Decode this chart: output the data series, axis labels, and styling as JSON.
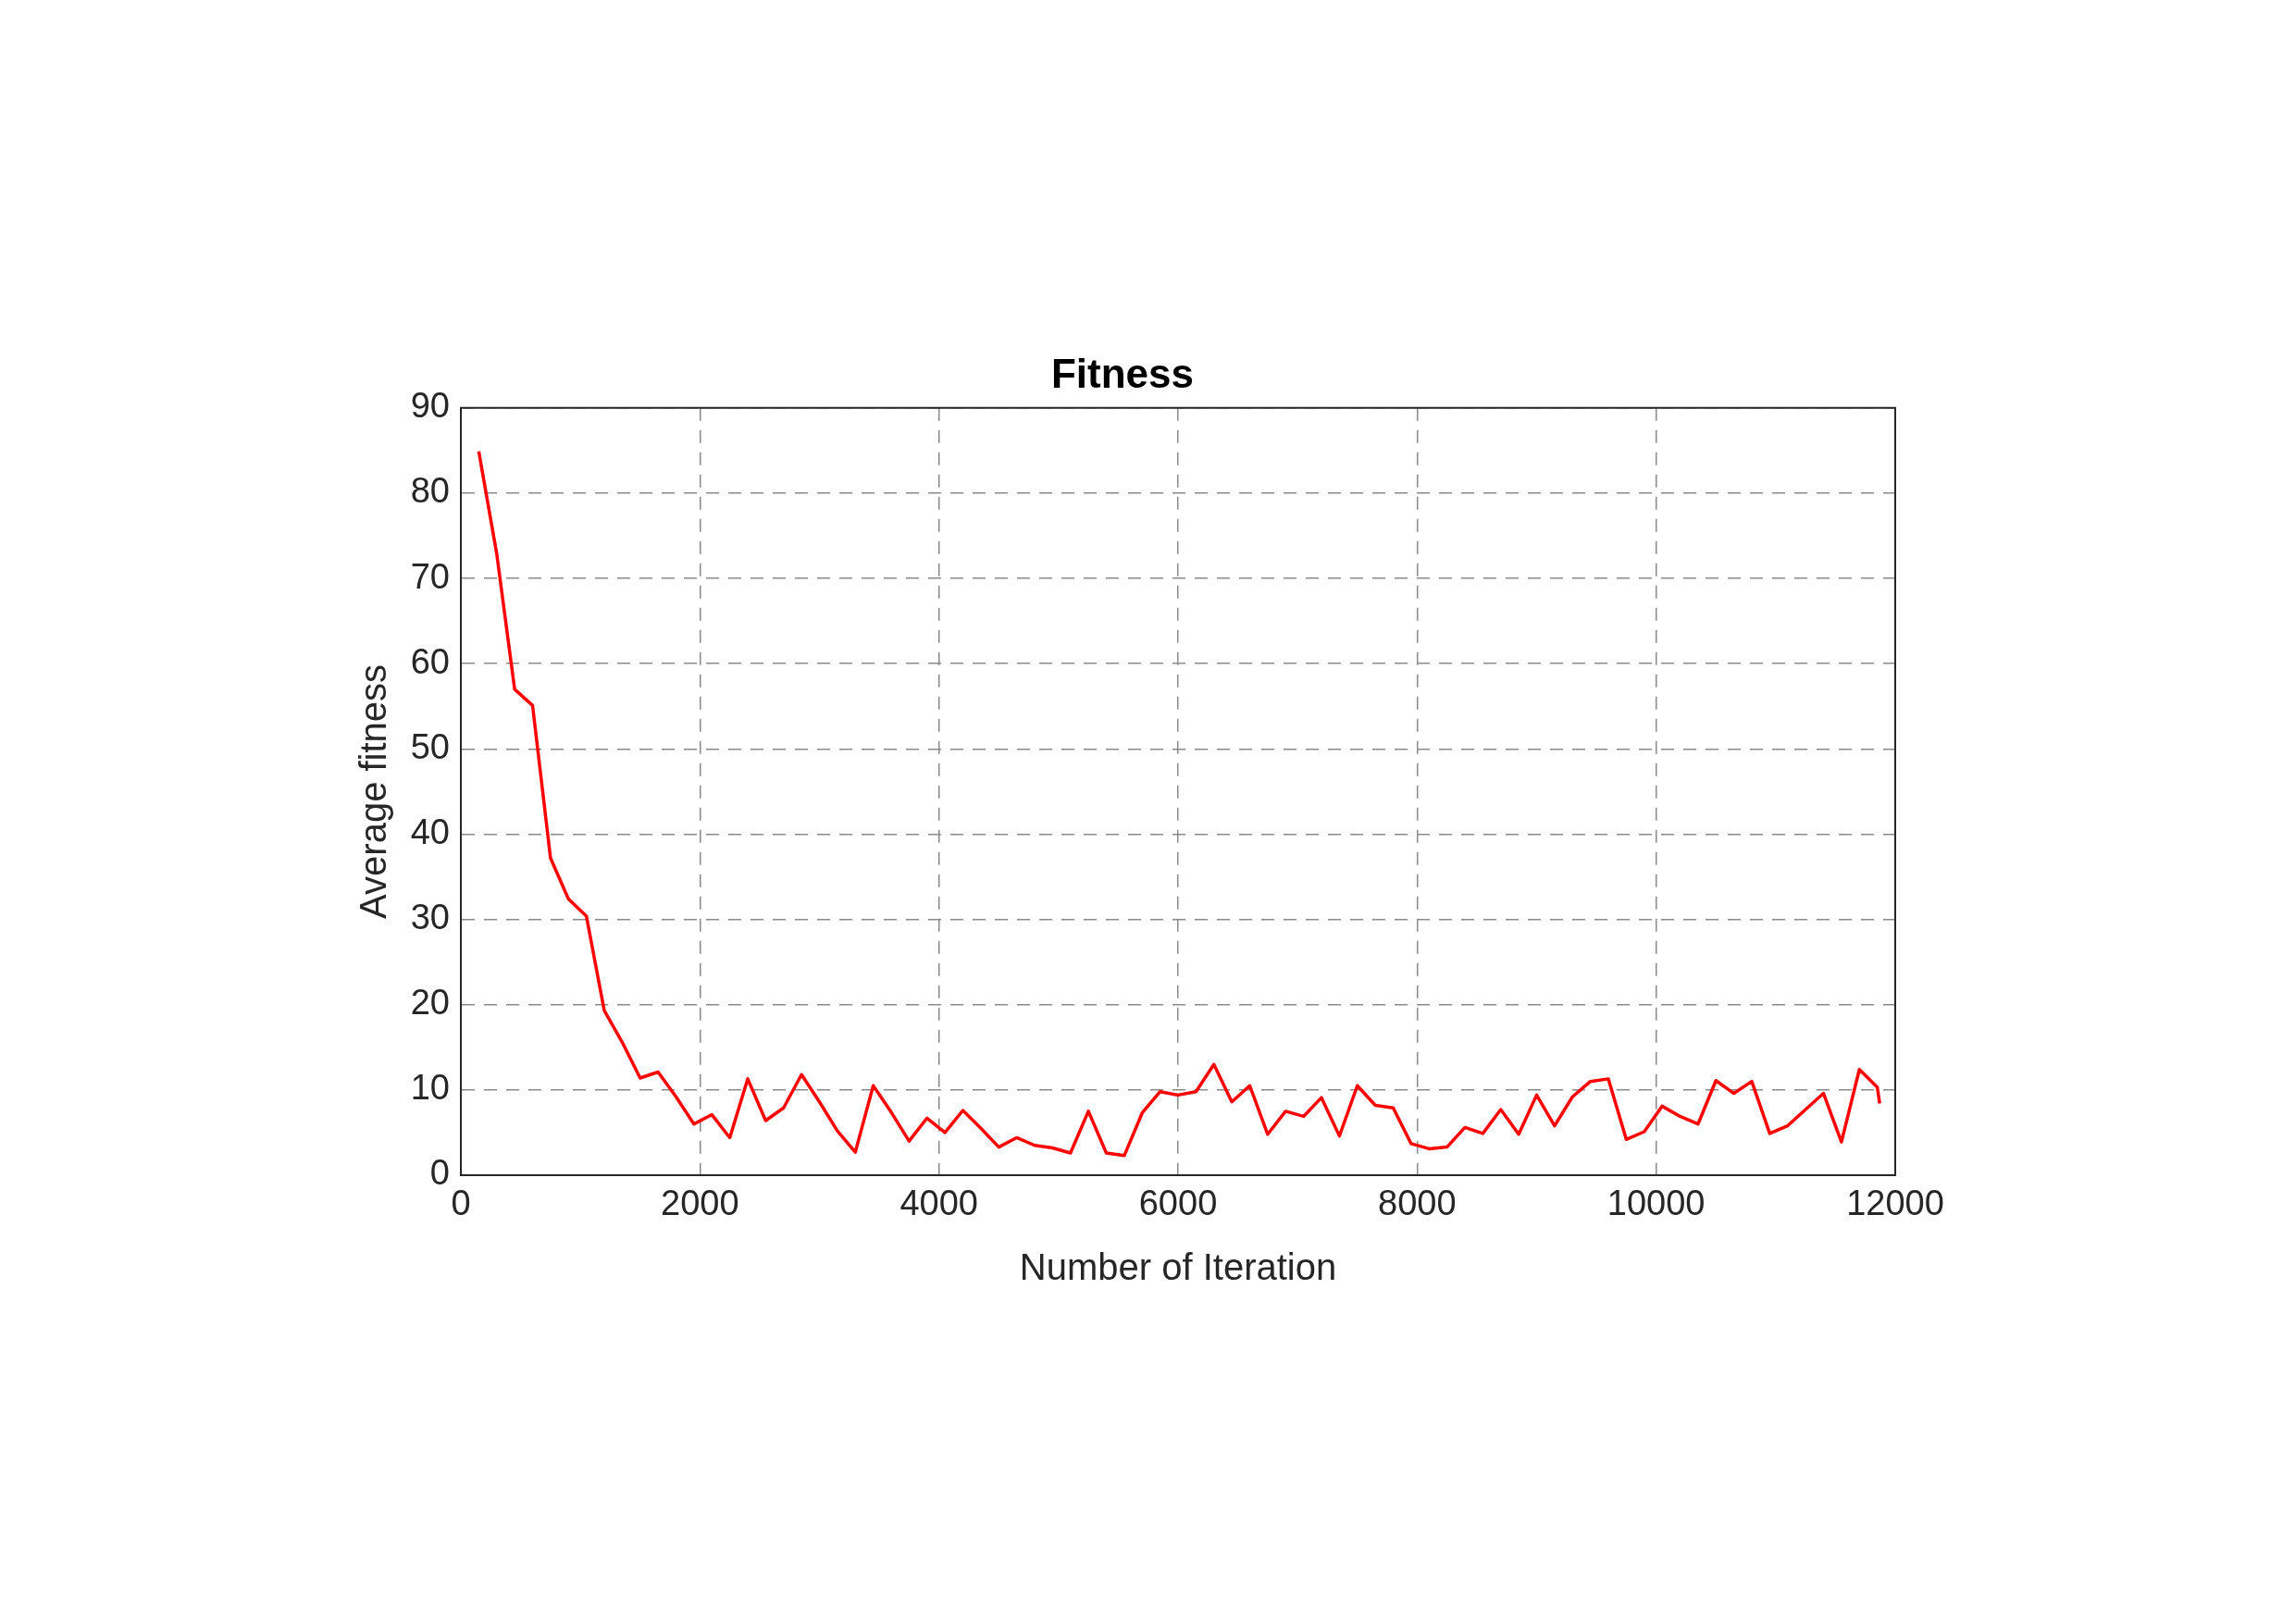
{
  "chart_data": {
    "type": "line",
    "title": "Fitness",
    "xlabel": "Number of Iteration",
    "ylabel": "Average fitness",
    "x": [
      150,
      300,
      450,
      600,
      750,
      900,
      1050,
      1200,
      1350,
      1500,
      1650,
      1800,
      1950,
      2100,
      2250,
      2400,
      2550,
      2700,
      2850,
      3000,
      3150,
      3300,
      3450,
      3600,
      3750,
      3900,
      4050,
      4200,
      4350,
      4500,
      4650,
      4800,
      4950,
      5100,
      5250,
      5400,
      5550,
      5700,
      5850,
      6000,
      6150,
      6300,
      6450,
      6600,
      6750,
      6900,
      7050,
      7200,
      7350,
      7500,
      7650,
      7800,
      7950,
      8100,
      8250,
      8400,
      8550,
      8700,
      8850,
      9000,
      9150,
      9300,
      9450,
      9600,
      9750,
      9900,
      10050,
      10200,
      10350,
      10500,
      10650,
      10800,
      10950,
      11100,
      11250,
      11400,
      11550,
      11700,
      11850,
      11870
    ],
    "series": [
      {
        "color": "#ff0000",
        "values": [
          84.9,
          72.9,
          57.0,
          55.1,
          37.2,
          32.4,
          30.4,
          19.3,
          15.6,
          11.4,
          12.1,
          9.2,
          6.0,
          7.1,
          4.4,
          11.3,
          6.4,
          7.9,
          11.8,
          8.6,
          5.2,
          2.7,
          10.5,
          7.4,
          4.0,
          6.7,
          5.0,
          7.6,
          5.5,
          3.3,
          4.4,
          3.5,
          3.2,
          2.6,
          7.5,
          2.6,
          2.3,
          7.3,
          9.8,
          9.4,
          9.8,
          13.0,
          8.6,
          10.5,
          4.8,
          7.5,
          6.9,
          9.1,
          4.6,
          10.5,
          8.2,
          7.9,
          3.7,
          3.1,
          3.3,
          5.6,
          4.9,
          7.7,
          4.8,
          9.4,
          5.8,
          9.2,
          11.0,
          11.3,
          4.2,
          5.1,
          8.1,
          6.9,
          6.0,
          11.1,
          9.6,
          11.0,
          4.9,
          5.8,
          7.7,
          9.6,
          3.9,
          12.4,
          10.3,
          8.4
        ]
      }
    ],
    "xlim": [
      0,
      12000
    ],
    "xticks": [
      0,
      2000,
      4000,
      6000,
      8000,
      10000,
      12000
    ],
    "ylim": [
      0,
      90
    ],
    "yticks": [
      0,
      10,
      20,
      30,
      40,
      50,
      60,
      70,
      80,
      90
    ],
    "grid": true,
    "legend": false,
    "marker": "none",
    "line_style": "solid"
  }
}
